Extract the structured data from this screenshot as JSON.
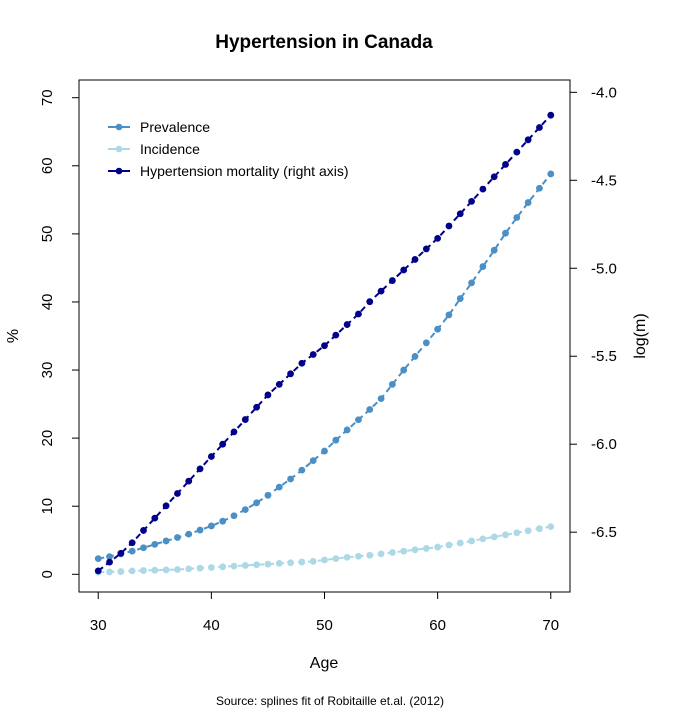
{
  "chart_data": {
    "type": "line",
    "title": "Hypertension in Canada",
    "xlabel": "Age",
    "ylabel": "%",
    "y2label": "log(m)",
    "source": "Source: splines fit of Robitaille et.al. (2012)",
    "xlim": [
      28.3,
      71.7
    ],
    "ylim": [
      -2.6,
      72.6
    ],
    "y2lim": [
      -6.84,
      -3.93
    ],
    "xticks": [
      30,
      40,
      50,
      60,
      70
    ],
    "yticks": [
      0,
      10,
      20,
      30,
      40,
      50,
      60,
      70
    ],
    "y2ticks": [
      -6.5,
      -6.0,
      -5.5,
      -5.0,
      -4.5,
      -4.0
    ],
    "y2tick_labels": [
      "-6.5",
      "-6.0",
      "-5.5",
      "-5.0",
      "-4.5",
      "-4.0"
    ],
    "legend_position": "top-left",
    "grid": false,
    "x": [
      30,
      31,
      32,
      33,
      34,
      35,
      36,
      37,
      38,
      39,
      40,
      41,
      42,
      43,
      44,
      45,
      46,
      47,
      48,
      49,
      50,
      51,
      52,
      53,
      54,
      55,
      56,
      57,
      58,
      59,
      60,
      61,
      62,
      63,
      64,
      65,
      66,
      67,
      68,
      69,
      70
    ],
    "series": [
      {
        "name": "Prevalence",
        "axis": "left",
        "color": "#4A8FC6",
        "values": [
          2.3,
          2.6,
          3.0,
          3.4,
          3.9,
          4.4,
          4.9,
          5.4,
          5.9,
          6.5,
          7.1,
          7.8,
          8.6,
          9.5,
          10.5,
          11.6,
          12.8,
          14.0,
          15.3,
          16.7,
          18.1,
          19.7,
          21.2,
          22.7,
          24.2,
          25.8,
          27.9,
          30.0,
          32.0,
          34.0,
          36.0,
          38.1,
          40.5,
          42.8,
          45.2,
          47.6,
          50.1,
          52.4,
          54.6,
          56.7,
          58.8
        ]
      },
      {
        "name": "Incidence",
        "axis": "left",
        "color": "#ADD8E6",
        "values": [
          0.3,
          0.35,
          0.4,
          0.5,
          0.55,
          0.6,
          0.65,
          0.7,
          0.8,
          0.9,
          1.0,
          1.1,
          1.2,
          1.3,
          1.4,
          1.5,
          1.6,
          1.7,
          1.8,
          1.9,
          2.1,
          2.3,
          2.5,
          2.65,
          2.8,
          3.0,
          3.2,
          3.4,
          3.6,
          3.8,
          4.0,
          4.3,
          4.6,
          4.9,
          5.2,
          5.5,
          5.8,
          6.1,
          6.4,
          6.7,
          7.0
        ]
      },
      {
        "name": "Hypertension mortality (right axis)",
        "axis": "right",
        "color": "#00008B",
        "values": [
          -6.72,
          -6.67,
          -6.62,
          -6.56,
          -6.49,
          -6.42,
          -6.35,
          -6.28,
          -6.21,
          -6.14,
          -6.07,
          -6.0,
          -5.93,
          -5.86,
          -5.79,
          -5.72,
          -5.66,
          -5.6,
          -5.54,
          -5.49,
          -5.44,
          -5.38,
          -5.32,
          -5.26,
          -5.19,
          -5.13,
          -5.07,
          -5.01,
          -4.95,
          -4.89,
          -4.83,
          -4.76,
          -4.69,
          -4.62,
          -4.55,
          -4.48,
          -4.41,
          -4.34,
          -4.27,
          -4.2,
          -4.13
        ]
      }
    ]
  }
}
